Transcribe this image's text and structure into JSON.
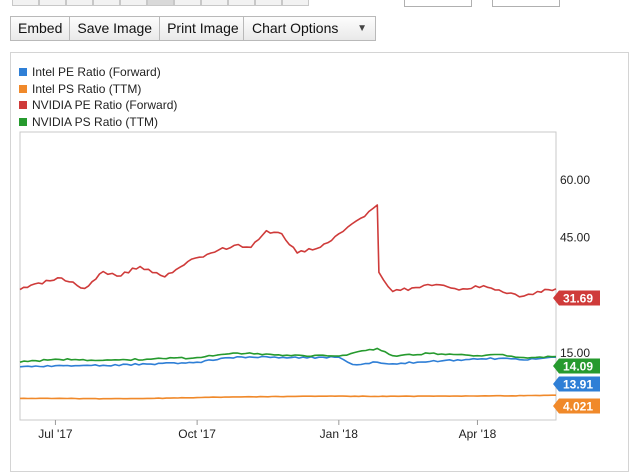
{
  "toolbar": {
    "embed_label": "Embed",
    "save_label": "Save Image",
    "print_label": "Print Image",
    "options_label": "Chart Options",
    "options_caret": "▼"
  },
  "colors": {
    "intel_pe": "#2f7fd6",
    "intel_ps": "#f0892a",
    "nvidia_pe": "#cf3b3a",
    "nvidia_ps": "#269a2e",
    "axis": "#c9c9c9",
    "tick_text": "#222222"
  },
  "chart_data": {
    "type": "line",
    "title": "",
    "xlabel": "",
    "ylabel": "",
    "legend_position": "top-left",
    "grid": false,
    "ylim": [
      0,
      70
    ],
    "xlim": [
      "2017-06-08",
      "2018-05-22"
    ],
    "x_ticks": [
      {
        "label": "Jul '17",
        "date": "2017-07-01"
      },
      {
        "label": "Oct '17",
        "date": "2017-10-01"
      },
      {
        "label": "Jan '18",
        "date": "2018-01-01"
      },
      {
        "label": "Apr '18",
        "date": "2018-04-01"
      }
    ],
    "y_ticks": [
      {
        "label": "15.00",
        "value": 15
      },
      {
        "label": "45.00",
        "value": 45
      },
      {
        "label": "60.00",
        "value": 60
      }
    ],
    "series": [
      {
        "name": "Intel PE Ratio (Forward)",
        "color_key": "intel_pe",
        "last_label": "13.91",
        "x": [
          "2017-06-08",
          "2017-07-01",
          "2017-08-01",
          "2017-09-01",
          "2017-10-01",
          "2017-10-27",
          "2017-12-01",
          "2018-01-01",
          "2018-01-10",
          "2018-01-26",
          "2018-02-05",
          "2018-03-01",
          "2018-04-01",
          "2018-04-15",
          "2018-05-01",
          "2018-05-22"
        ],
        "values": [
          11.4,
          11.7,
          11.8,
          12.1,
          12.6,
          14.0,
          13.8,
          13.9,
          12.0,
          12.6,
          12.2,
          12.8,
          13.4,
          13.6,
          13.2,
          13.91
        ]
      },
      {
        "name": "Intel PS Ratio (TTM)",
        "color_key": "intel_ps",
        "last_label": "4.021",
        "x": [
          "2017-06-08",
          "2017-07-01",
          "2017-08-01",
          "2017-09-01",
          "2017-10-01",
          "2017-11-01",
          "2017-12-01",
          "2018-01-01",
          "2018-02-01",
          "2018-03-01",
          "2018-04-01",
          "2018-05-01",
          "2018-05-22"
        ],
        "values": [
          3.2,
          3.2,
          3.1,
          3.2,
          3.4,
          3.6,
          3.7,
          3.8,
          3.7,
          3.8,
          3.8,
          3.9,
          4.021
        ]
      },
      {
        "name": "NVIDIA PE Ratio (Forward)",
        "color_key": "nvidia_pe",
        "last_label": "31.69",
        "x": [
          "2017-06-08",
          "2017-06-20",
          "2017-07-05",
          "2017-07-20",
          "2017-08-01",
          "2017-08-10",
          "2017-08-25",
          "2017-09-10",
          "2017-09-25",
          "2017-10-10",
          "2017-10-25",
          "2017-11-05",
          "2017-11-15",
          "2017-11-25",
          "2017-12-05",
          "2017-12-20",
          "2018-01-01",
          "2018-01-15",
          "2018-01-26",
          "2018-01-27",
          "2018-02-05",
          "2018-02-20",
          "2018-03-05",
          "2018-03-20",
          "2018-04-05",
          "2018-04-20",
          "2018-05-01",
          "2018-05-10",
          "2018-05-22"
        ],
        "values": [
          31.5,
          33.2,
          34.5,
          31.8,
          36.2,
          35.0,
          37.5,
          34.8,
          38.8,
          41.0,
          43.0,
          42.5,
          46.8,
          46.0,
          41.0,
          42.5,
          46.0,
          50.0,
          53.5,
          36.0,
          31.0,
          32.0,
          32.8,
          31.4,
          32.5,
          30.5,
          29.8,
          31.0,
          31.69
        ]
      },
      {
        "name": "NVIDIA PS Ratio (TTM)",
        "color_key": "nvidia_ps",
        "last_label": "14.09",
        "x": [
          "2017-06-08",
          "2017-07-01",
          "2017-08-01",
          "2017-09-01",
          "2017-10-01",
          "2017-10-27",
          "2017-12-01",
          "2018-01-01",
          "2018-01-26",
          "2018-02-05",
          "2018-03-01",
          "2018-04-01",
          "2018-04-15",
          "2018-05-01",
          "2018-05-22"
        ],
        "values": [
          12.6,
          13.4,
          13.1,
          13.4,
          13.8,
          15.0,
          14.3,
          14.2,
          16.2,
          14.3,
          14.9,
          14.3,
          14.6,
          13.8,
          14.09
        ]
      }
    ]
  }
}
